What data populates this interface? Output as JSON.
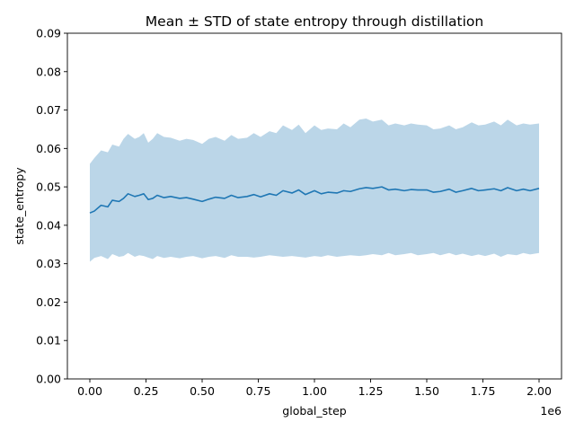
{
  "chart_data": {
    "type": "line",
    "title": "Mean ± STD of state entropy through distillation",
    "xlabel": "global_step",
    "ylabel": "state_entropy",
    "x_offset_label": "1e6",
    "xlim": [
      -0.1,
      2.1
    ],
    "ylim": [
      0.0,
      0.09
    ],
    "x_ticks": [
      0.0,
      0.25,
      0.5,
      0.75,
      1.0,
      1.25,
      1.5,
      1.75,
      2.0
    ],
    "x_tick_labels": [
      "0.00",
      "0.25",
      "0.50",
      "0.75",
      "1.00",
      "1.25",
      "1.50",
      "1.75",
      "2.00"
    ],
    "y_ticks": [
      0.0,
      0.01,
      0.02,
      0.03,
      0.04,
      0.05,
      0.06,
      0.07,
      0.08,
      0.09
    ],
    "y_tick_labels": [
      "0.00",
      "0.01",
      "0.02",
      "0.03",
      "0.04",
      "0.05",
      "0.06",
      "0.07",
      "0.08",
      "0.09"
    ],
    "colors": {
      "line": "#1f77b4",
      "band": "#1f77b4"
    },
    "series": [
      {
        "name": "mean",
        "x": [
          0.0,
          0.02,
          0.05,
          0.08,
          0.1,
          0.13,
          0.15,
          0.17,
          0.2,
          0.22,
          0.24,
          0.26,
          0.28,
          0.3,
          0.33,
          0.36,
          0.4,
          0.43,
          0.46,
          0.5,
          0.53,
          0.56,
          0.6,
          0.63,
          0.66,
          0.7,
          0.73,
          0.76,
          0.8,
          0.83,
          0.86,
          0.9,
          0.93,
          0.96,
          1.0,
          1.03,
          1.06,
          1.1,
          1.13,
          1.16,
          1.2,
          1.23,
          1.26,
          1.3,
          1.33,
          1.36,
          1.4,
          1.43,
          1.46,
          1.5,
          1.53,
          1.56,
          1.6,
          1.63,
          1.66,
          1.7,
          1.73,
          1.76,
          1.8,
          1.83,
          1.86,
          1.9,
          1.93,
          1.96,
          2.0
        ],
        "mean": [
          0.0432,
          0.0437,
          0.0452,
          0.0448,
          0.0465,
          0.0462,
          0.047,
          0.0482,
          0.0475,
          0.0478,
          0.0482,
          0.0467,
          0.047,
          0.0478,
          0.0472,
          0.0475,
          0.047,
          0.0472,
          0.0468,
          0.0462,
          0.0468,
          0.0473,
          0.047,
          0.0478,
          0.0472,
          0.0475,
          0.048,
          0.0474,
          0.0482,
          0.0478,
          0.049,
          0.0484,
          0.0492,
          0.048,
          0.049,
          0.0482,
          0.0486,
          0.0484,
          0.049,
          0.0488,
          0.0495,
          0.0498,
          0.0496,
          0.05,
          0.0492,
          0.0494,
          0.049,
          0.0493,
          0.0492,
          0.0492,
          0.0486,
          0.0488,
          0.0494,
          0.0486,
          0.049,
          0.0496,
          0.049,
          0.0492,
          0.0495,
          0.049,
          0.0498,
          0.049,
          0.0494,
          0.049,
          0.0496
        ],
        "lower": [
          0.0305,
          0.0315,
          0.032,
          0.0312,
          0.0325,
          0.0318,
          0.032,
          0.0328,
          0.0318,
          0.0322,
          0.032,
          0.0316,
          0.0312,
          0.032,
          0.0315,
          0.0318,
          0.0314,
          0.0318,
          0.032,
          0.0314,
          0.0318,
          0.032,
          0.0315,
          0.0322,
          0.0318,
          0.0318,
          0.0316,
          0.0318,
          0.0322,
          0.032,
          0.0318,
          0.032,
          0.0318,
          0.0316,
          0.032,
          0.0318,
          0.0322,
          0.0318,
          0.032,
          0.0322,
          0.032,
          0.0322,
          0.0325,
          0.0322,
          0.0328,
          0.0322,
          0.0325,
          0.0328,
          0.0322,
          0.0325,
          0.0328,
          0.0322,
          0.0328,
          0.0322,
          0.0326,
          0.032,
          0.0324,
          0.032,
          0.0326,
          0.0318,
          0.0325,
          0.0322,
          0.0328,
          0.0324,
          0.0328
        ],
        "upper": [
          0.056,
          0.0575,
          0.0595,
          0.059,
          0.061,
          0.0605,
          0.0625,
          0.0638,
          0.0625,
          0.063,
          0.064,
          0.0615,
          0.0625,
          0.064,
          0.063,
          0.0628,
          0.062,
          0.0625,
          0.0622,
          0.0612,
          0.0625,
          0.063,
          0.062,
          0.0635,
          0.0625,
          0.0628,
          0.064,
          0.063,
          0.0645,
          0.064,
          0.066,
          0.0648,
          0.0662,
          0.064,
          0.066,
          0.0648,
          0.0652,
          0.065,
          0.0665,
          0.0655,
          0.0675,
          0.0678,
          0.067,
          0.0675,
          0.066,
          0.0665,
          0.066,
          0.0665,
          0.0662,
          0.066,
          0.065,
          0.0652,
          0.066,
          0.065,
          0.0655,
          0.0668,
          0.066,
          0.0662,
          0.067,
          0.066,
          0.0675,
          0.066,
          0.0665,
          0.0662,
          0.0665
        ]
      }
    ]
  }
}
